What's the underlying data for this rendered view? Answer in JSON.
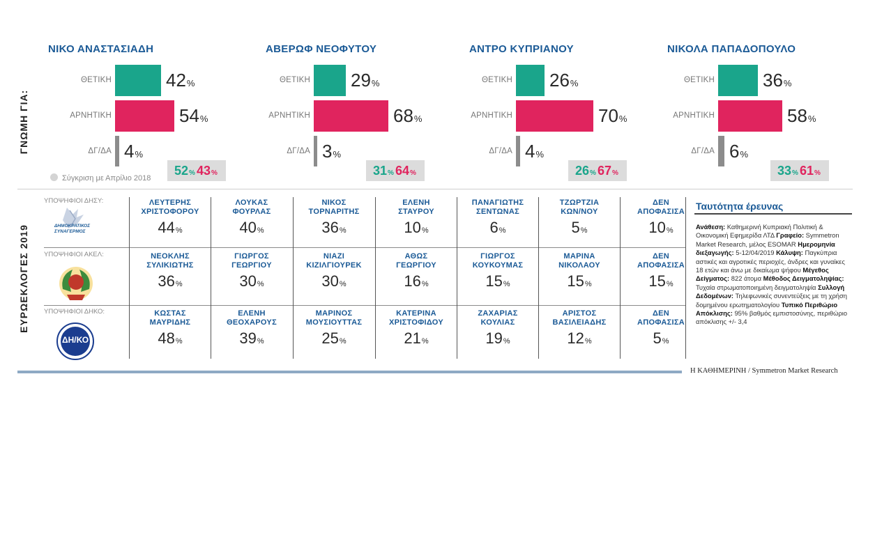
{
  "top_label": "ΓΝΩΜΗ ΓΙΑ:",
  "bar_labels": {
    "positive": "ΘΕΤΙΚΗ",
    "negative": "ΑΡΝΗΤΙΚΗ",
    "unknown": "ΔΓ/ΔΑ"
  },
  "percent_sign": "%",
  "comparison_note": "Σύγκριση με Απρίλιο 2018",
  "colors": {
    "positive": "#1aa58b",
    "negative": "#e0245e",
    "unknown": "#8c8c8c",
    "accent": "#1b5a96"
  },
  "chart_data": {
    "type": "bar",
    "series_names": [
      "ΘΕΤΙΚΗ",
      "ΑΡΝΗΤΙΚΗ",
      "ΔΓ/ΔΑ"
    ],
    "candidates": [
      {
        "name": "ΝΙΚΟ ΑΝΑΣΤΑΣΙΑΔΗ",
        "positive": 42,
        "negative": 54,
        "unknown": 4,
        "apr2018_positive": 52,
        "apr2018_negative": 43
      },
      {
        "name": "ΑΒΕΡΩΦ ΝΕΟΦΥΤΟΥ",
        "positive": 29,
        "negative": 68,
        "unknown": 3,
        "apr2018_positive": 31,
        "apr2018_negative": 64
      },
      {
        "name": "ΑΝΤΡΟ ΚΥΠΡΙΑΝΟΥ",
        "positive": 26,
        "negative": 70,
        "unknown": 4,
        "apr2018_positive": 26,
        "apr2018_negative": 67
      },
      {
        "name": "ΝΙΚΟΛΑ ΠΑΠΑΔΟΠΟΥΛΟ",
        "positive": 36,
        "negative": 58,
        "unknown": 6,
        "apr2018_positive": 33,
        "apr2018_negative": 61
      }
    ]
  },
  "euro": {
    "label": "ΕΥΡΩΕΚΛΟΓΕΣ 2019",
    "parties": [
      {
        "label": "ΥΠΟΨΗΦΙΟΙ ΔΗΣΥ:",
        "logo_text": [
          "ΔΗΜΟΚΡΑΤΙΚΟΣ",
          "ΣΥΝΑΓΕΡΜΟΣ"
        ],
        "candidates": [
          {
            "name1": "ΛΕΥΤΕΡΗΣ",
            "name2": "ΧΡΙΣΤΟΦΟΡΟΥ",
            "value": 44
          },
          {
            "name1": "ΛΟΥΚΑΣ",
            "name2": "ΦΟΥΡΛΑΣ",
            "value": 40
          },
          {
            "name1": "ΝΙΚΟΣ",
            "name2": "ΤΟΡΝΑΡΙΤΗΣ",
            "value": 36
          },
          {
            "name1": "ΕΛΕΝΗ",
            "name2": "ΣΤΑΥΡΟΥ",
            "value": 10
          },
          {
            "name1": "ΠΑΝΑΓΙΩΤΗΣ",
            "name2": "ΣΕΝΤΩΝΑΣ",
            "value": 6
          },
          {
            "name1": "ΤΖΩΡΤΖΙΑ",
            "name2": "ΚΩΝ/ΝΟΥ",
            "value": 5
          },
          {
            "name1": "ΔΕΝ",
            "name2": "ΑΠΟΦΑΣΙΣΑ",
            "value": 10
          }
        ]
      },
      {
        "label": "ΥΠΟΨΗΦΙΟΙ ΑΚΕΛ:",
        "logo_text": [],
        "candidates": [
          {
            "name1": "ΝΕΟΚΛΗΣ",
            "name2": "ΣΥΛΙΚΙΩΤΗΣ",
            "value": 36
          },
          {
            "name1": "ΓΙΩΡΓΟΣ",
            "name2": "ΓΕΩΡΓΙΟΥ",
            "value": 30
          },
          {
            "name1": "ΝΙΑΖΙ",
            "name2": "ΚΙΖΙΛΓΙΟΥΡΕΚ",
            "value": 30
          },
          {
            "name1": "ΑΘΩΣ",
            "name2": "ΓΕΩΡΓΙΟΥ",
            "value": 16
          },
          {
            "name1": "ΓΙΩΡΓΟΣ",
            "name2": "ΚΟΥΚΟΥΜΑΣ",
            "value": 15
          },
          {
            "name1": "ΜΑΡΙΝΑ",
            "name2": "ΝΙΚΟΛΑΟΥ",
            "value": 15
          },
          {
            "name1": "ΔΕΝ",
            "name2": "ΑΠΟΦΑΣΙΣΑ",
            "value": 15
          }
        ]
      },
      {
        "label": "ΥΠΟΨΗΦΙΟΙ ΔΗΚΟ:",
        "logo_text": [
          "ΔΗ/ΚΟ"
        ],
        "candidates": [
          {
            "name1": "ΚΩΣΤΑΣ",
            "name2": "ΜΑΥΡΙΔΗΣ",
            "value": 48
          },
          {
            "name1": "ΕΛΕΝΗ",
            "name2": "ΘΕΟΧΑΡΟΥΣ",
            "value": 39
          },
          {
            "name1": "ΜΑΡΙΝΟΣ",
            "name2": "ΜΟΥΣΙΟΥΤΤΑΣ",
            "value": 25
          },
          {
            "name1": "ΚΑΤΕΡΙΝΑ",
            "name2": "ΧΡΙΣΤΟΦΙΔΟΥ",
            "value": 21
          },
          {
            "name1": "ΖΑΧΑΡΙΑΣ",
            "name2": "ΚΟΥΛΙΑΣ",
            "value": 19
          },
          {
            "name1": "ΑΡΙΣΤΟΣ",
            "name2": "ΒΑΣΙΛΕΙΑΔΗΣ",
            "value": 12
          },
          {
            "name1": "ΔΕΝ",
            "name2": "ΑΠΟΦΑΣΙΣΑ",
            "value": 5
          }
        ]
      }
    ]
  },
  "survey": {
    "title": "Ταυτότητα έρευνας",
    "segments": [
      {
        "bold": "Ανάθεση:",
        "text": " Καθημερινή Κυπριακή Πολιτική & Οικονομική Εφημερίδα ΛΤΔ "
      },
      {
        "bold": "Γραφείο:",
        "text": " Symmetron Market Research, μέλος ESOMAR "
      },
      {
        "bold": "Ημερομηνία διεξαγωγής:",
        "text": " 5-12/04/2019 "
      },
      {
        "bold": "Κάλυψη:",
        "text": " Παγκύπρια αστικές και αγροτικές περιοχές, άνδρες και γυναίκες 18 ετών και άνω με δικαίωμα ψήφου "
      },
      {
        "bold": "Μέγεθος Δείγματος:",
        "text": " 822 άτομα "
      },
      {
        "bold": "Μέθοδος Δειγματοληψίας:",
        "text": " Τυχαία στρωματοποιημένη δειγματοληψία "
      },
      {
        "bold": "Συλλογή Δεδομένων:",
        "text": " Τηλεφωνικές συνεντεύξεις με τη χρήση δομημένου ερωτηματολογίου "
      },
      {
        "bold": "Τυπικό Περιθώριο Απόκλισης:",
        "text": " 95% βαθμός εμπιστοσύνης, περιθώριο απόκλισης +/- 3,4"
      }
    ]
  },
  "source": "Η ΚΑΘΗΜΕΡΙΝΗ / Symmetron Market Research"
}
